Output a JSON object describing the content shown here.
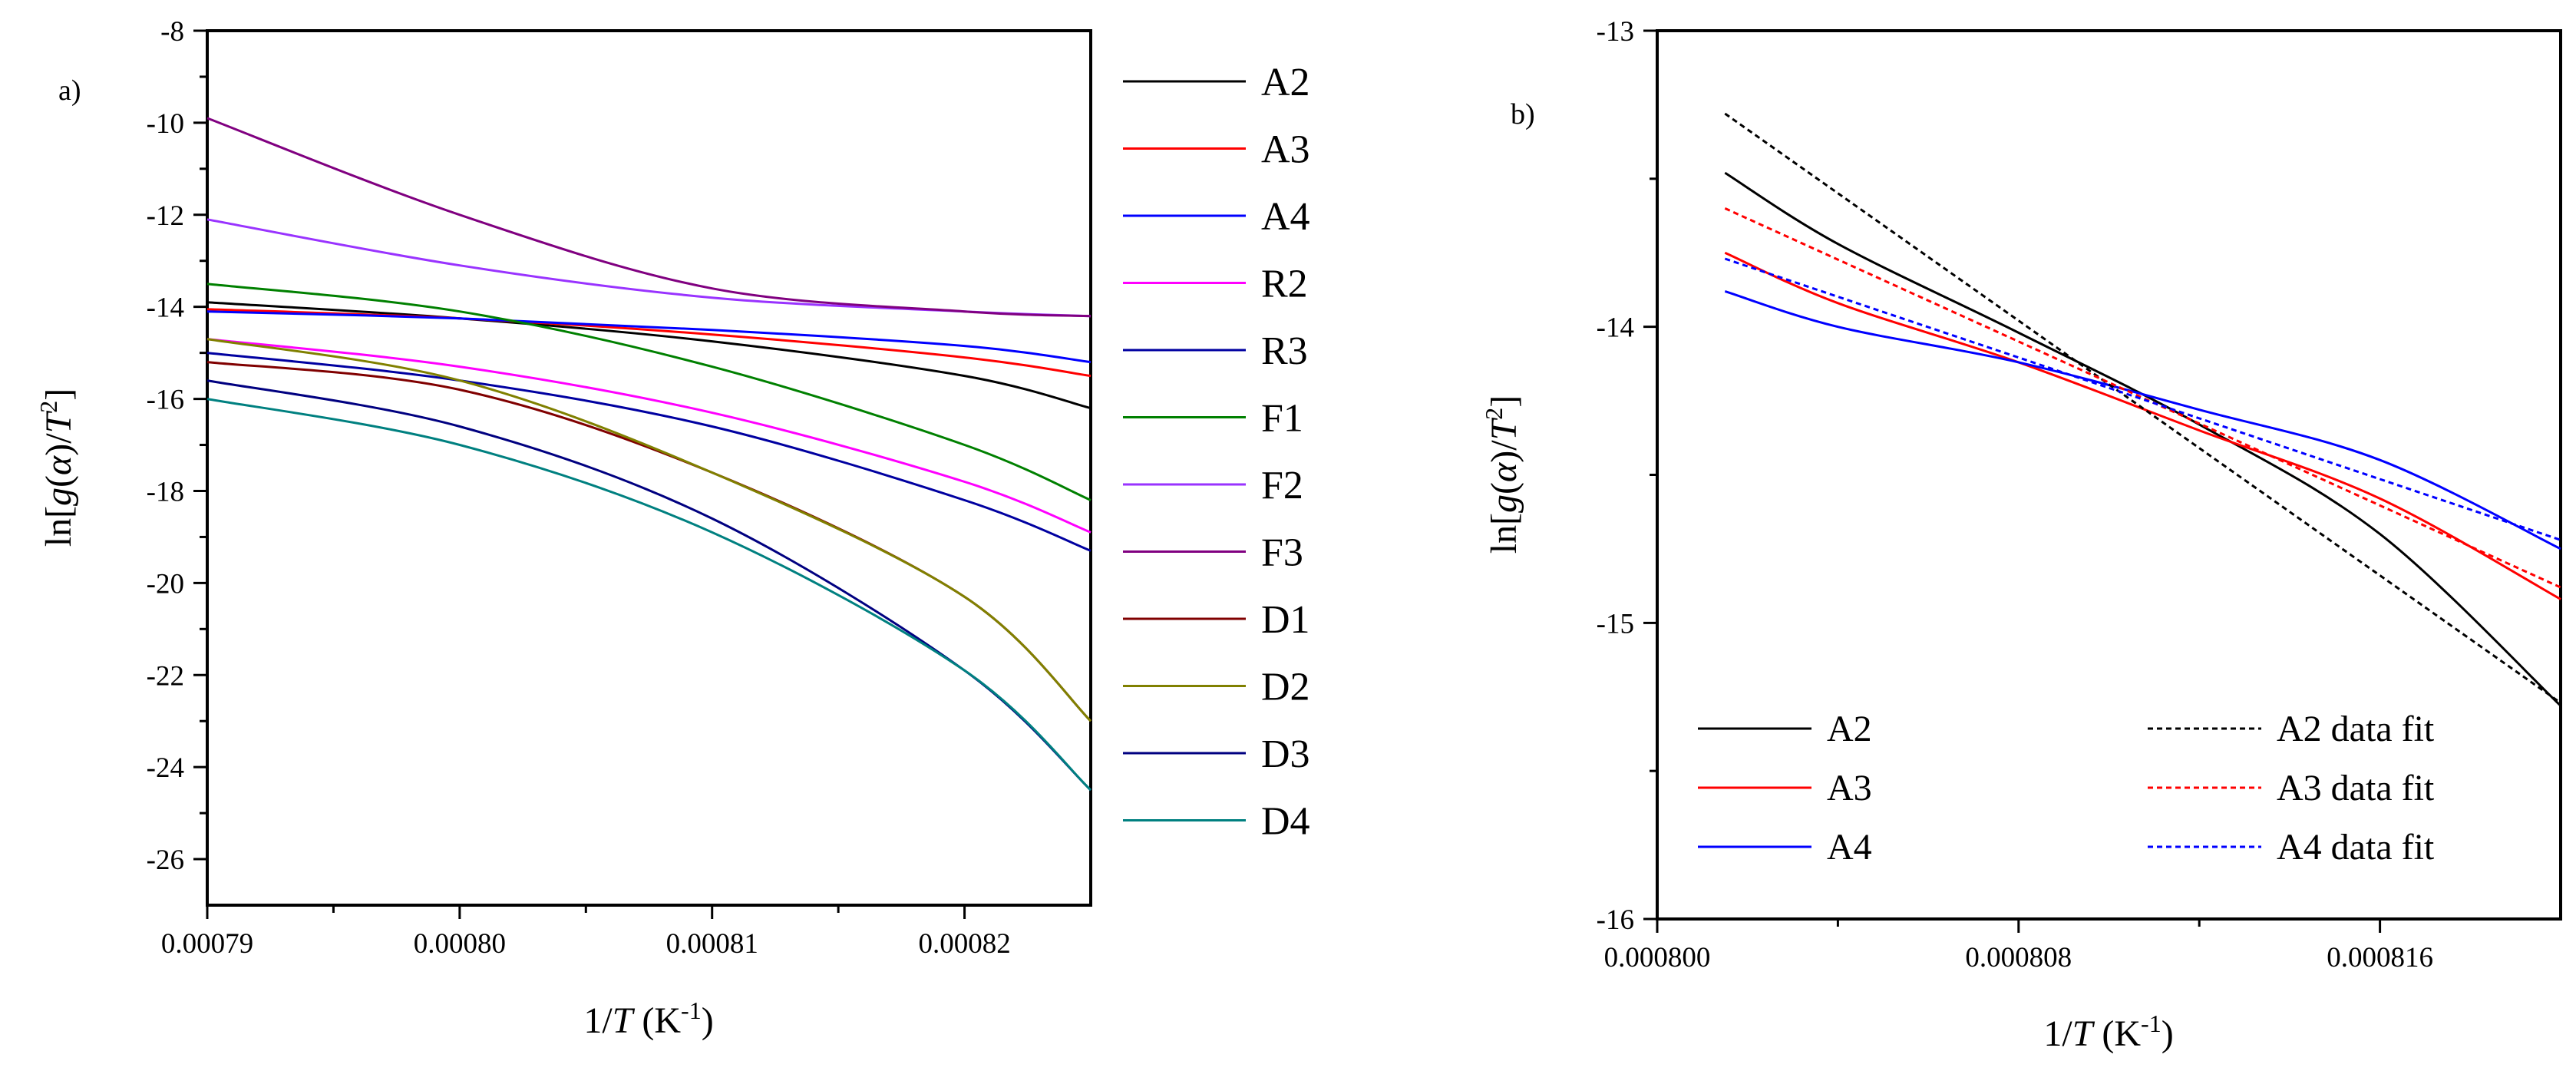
{
  "chart_data": [
    {
      "type": "line",
      "panel_label": "a)",
      "title": "",
      "xlabel": {
        "prefix": "1/",
        "italic": "T",
        "unit": " (K",
        "sup": "-1",
        "close": ")"
      },
      "ylabel": {
        "prefix": "ln[",
        "italic_g": "g",
        "paren_open": "(",
        "alpha": "α",
        "paren_close": ")",
        "slash": "/",
        "italic_T": "T",
        "sup": "2",
        "close": "]"
      },
      "xlim": [
        0.00079,
        0.000825
      ],
      "ylim": [
        -27,
        -8
      ],
      "xticks": [
        0.00079,
        0.0008,
        0.00081,
        0.00082
      ],
      "xtick_labels": [
        "0.00079",
        "0.00080",
        "0.00081",
        "0.00082"
      ],
      "yticks": [
        -26,
        -24,
        -22,
        -20,
        -18,
        -16,
        -14,
        -12,
        -10,
        -8
      ],
      "ytick_labels": [
        "-26",
        "-24",
        "-22",
        "-20",
        "-18",
        "-16",
        "-14",
        "-12",
        "-10",
        "-8"
      ],
      "legend_position": "right",
      "series": [
        {
          "name": "A2",
          "color": "#000000",
          "x": [
            0.00079,
            0.0008,
            0.00081,
            0.00082,
            0.000825
          ],
          "y": [
            -13.9,
            -14.25,
            -14.75,
            -15.5,
            -16.2
          ]
        },
        {
          "name": "A3",
          "color": "#ff0000",
          "x": [
            0.00079,
            0.0008,
            0.00081,
            0.00082,
            0.000825
          ],
          "y": [
            -14.05,
            -14.25,
            -14.6,
            -15.1,
            -15.5
          ]
        },
        {
          "name": "A4",
          "color": "#0000ff",
          "x": [
            0.00079,
            0.0008,
            0.00081,
            0.00082,
            0.000825
          ],
          "y": [
            -14.1,
            -14.25,
            -14.5,
            -14.85,
            -15.2
          ]
        },
        {
          "name": "R2",
          "color": "#ff00ff",
          "x": [
            0.00079,
            0.0008,
            0.00081,
            0.00082,
            0.000825
          ],
          "y": [
            -14.7,
            -15.3,
            -16.3,
            -17.8,
            -18.9
          ]
        },
        {
          "name": "R3",
          "color": "#0000a0",
          "x": [
            0.00079,
            0.0008,
            0.00081,
            0.00082,
            0.000825
          ],
          "y": [
            -15.0,
            -15.6,
            -16.6,
            -18.2,
            -19.3
          ]
        },
        {
          "name": "F1",
          "color": "#008000",
          "x": [
            0.00079,
            0.0008,
            0.00081,
            0.00082,
            0.000825
          ],
          "y": [
            -13.5,
            -14.1,
            -15.3,
            -17.0,
            -18.2
          ]
        },
        {
          "name": "F2",
          "color": "#9933ff",
          "x": [
            0.00079,
            0.0008,
            0.00081,
            0.00082,
            0.000825
          ],
          "y": [
            -12.1,
            -13.1,
            -13.8,
            -14.1,
            -14.2
          ]
        },
        {
          "name": "F3",
          "color": "#800080",
          "x": [
            0.00079,
            0.0008,
            0.00081,
            0.00082,
            0.000825
          ],
          "y": [
            -9.9,
            -12.0,
            -13.6,
            -14.1,
            -14.2
          ]
        },
        {
          "name": "D1",
          "color": "#800000",
          "x": [
            0.00079,
            0.0008,
            0.00081,
            0.00082,
            0.000825
          ],
          "y": [
            -15.2,
            -15.8,
            -17.6,
            -20.3,
            -23.0
          ]
        },
        {
          "name": "D2",
          "color": "#808000",
          "x": [
            0.00079,
            0.0008,
            0.00081,
            0.00082,
            0.000825
          ],
          "y": [
            -14.7,
            -15.6,
            -17.6,
            -20.3,
            -23.0
          ]
        },
        {
          "name": "D3",
          "color": "#000080",
          "x": [
            0.00079,
            0.0008,
            0.00081,
            0.00082,
            0.000825
          ],
          "y": [
            -15.6,
            -16.6,
            -18.6,
            -21.9,
            -24.5
          ]
        },
        {
          "name": "D4",
          "color": "#008080",
          "x": [
            0.00079,
            0.0008,
            0.00081,
            0.00082,
            0.000825
          ],
          "y": [
            -16.0,
            -17.0,
            -18.9,
            -21.9,
            -24.5
          ]
        }
      ]
    },
    {
      "type": "line",
      "panel_label": "b)",
      "title": "",
      "xlabel": {
        "prefix": "1/",
        "italic": "T",
        "unit": " (K",
        "sup": "-1",
        "close": ")"
      },
      "ylabel": {
        "prefix": "ln[",
        "italic_g": "g",
        "paren_open": "(",
        "alpha": "α",
        "paren_close": ")",
        "slash": "/",
        "italic_T": "T",
        "sup": "2",
        "close": "]"
      },
      "xlim": [
        0.0008,
        0.00082
      ],
      "ylim": [
        -16,
        -13
      ],
      "xticks": [
        0.0008,
        0.000808,
        0.000816
      ],
      "xtick_labels": [
        "0.000800",
        "0.000808",
        "0.000816"
      ],
      "yticks": [
        -16,
        -15,
        -14,
        -13
      ],
      "ytick_labels": [
        "-16",
        "-15",
        "-14",
        "-13"
      ],
      "legend_position": "bottom-left",
      "series": [
        {
          "name": "A2",
          "color": "#000000",
          "dashed": false,
          "x": [
            0.0008015,
            0.000804,
            0.000808,
            0.000812,
            0.000816,
            0.00082
          ],
          "y": [
            -13.48,
            -13.72,
            -14.02,
            -14.33,
            -14.7,
            -15.28
          ]
        },
        {
          "name": "A3",
          "color": "#ff0000",
          "dashed": false,
          "x": [
            0.0008015,
            0.000804,
            0.000808,
            0.000812,
            0.000816,
            0.00082
          ],
          "y": [
            -13.75,
            -13.92,
            -14.12,
            -14.35,
            -14.58,
            -14.92
          ]
        },
        {
          "name": "A4",
          "color": "#0000ff",
          "dashed": false,
          "x": [
            0.0008015,
            0.000804,
            0.000808,
            0.000812,
            0.000816,
            0.00082
          ],
          "y": [
            -13.88,
            -14.0,
            -14.12,
            -14.28,
            -14.45,
            -14.75
          ]
        },
        {
          "name": "A2 data fit",
          "color": "#000000",
          "dashed": true,
          "x": [
            0.0008015,
            0.00082
          ],
          "y": [
            -13.28,
            -15.27
          ]
        },
        {
          "name": "A3 data fit",
          "color": "#ff0000",
          "dashed": true,
          "x": [
            0.0008015,
            0.00082
          ],
          "y": [
            -13.6,
            -14.88
          ]
        },
        {
          "name": "A4 data fit",
          "color": "#0000ff",
          "dashed": true,
          "x": [
            0.0008015,
            0.00082
          ],
          "y": [
            -13.77,
            -14.72
          ]
        }
      ]
    }
  ]
}
